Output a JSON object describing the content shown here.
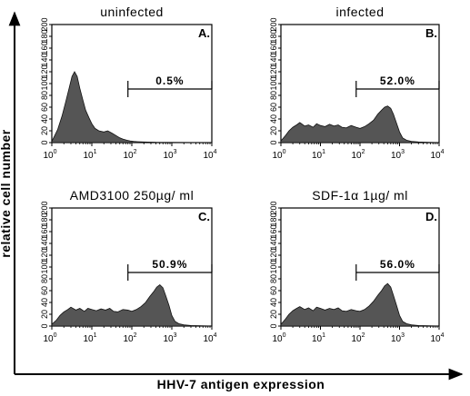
{
  "figure": {
    "ylabel": "relative   cell   number",
    "xlabel": "HHV-7   antigen   expression"
  },
  "chart_data": [
    {
      "type": "area",
      "panel": "A.",
      "title": "uninfected",
      "x_scale": "log",
      "xlim": [
        1,
        10000
      ],
      "x_ticks": [
        "10^0",
        "10^1",
        "10^2",
        "10^3",
        "10^4"
      ],
      "ylim": [
        0,
        200
      ],
      "y_ticks": [
        0,
        20,
        40,
        60,
        80,
        100,
        120,
        140,
        160,
        180,
        200
      ],
      "gate": {
        "x_start": 80,
        "x_end": 10000,
        "label": "0.5%"
      },
      "color": "#555555",
      "series": {
        "x": [
          1,
          1.4,
          1.8,
          2.2,
          2.7,
          3.2,
          3.7,
          4.3,
          5,
          6,
          7,
          8.5,
          10,
          12,
          15,
          20,
          25,
          32,
          40,
          50,
          60,
          75,
          90,
          110,
          140,
          200,
          400,
          1000,
          10000
        ],
        "y": [
          2,
          22,
          45,
          68,
          92,
          112,
          120,
          112,
          92,
          72,
          55,
          42,
          32,
          24,
          20,
          18,
          20,
          16,
          12,
          8,
          6,
          4,
          3,
          2,
          1.5,
          1,
          0.5,
          0.3,
          0
        ]
      }
    },
    {
      "type": "area",
      "panel": "B.",
      "title": "infected",
      "x_scale": "log",
      "xlim": [
        1,
        10000
      ],
      "x_ticks": [
        "10^0",
        "10^1",
        "10^2",
        "10^3",
        "10^4"
      ],
      "ylim": [
        0,
        200
      ],
      "y_ticks": [
        0,
        20,
        40,
        60,
        80,
        100,
        120,
        140,
        160,
        180,
        200
      ],
      "gate": {
        "x_start": 80,
        "x_end": 10000,
        "label": "52.0%"
      },
      "color": "#555555",
      "series": {
        "x": [
          1,
          1.3,
          1.6,
          2,
          2.5,
          3,
          4,
          5,
          6.5,
          8,
          10,
          13,
          17,
          22,
          28,
          35,
          45,
          60,
          80,
          100,
          130,
          170,
          220,
          280,
          350,
          420,
          500,
          600,
          700,
          850,
          1000,
          1200,
          1500,
          2000,
          3000,
          5000,
          10000
        ],
        "y": [
          3,
          12,
          20,
          26,
          30,
          34,
          28,
          30,
          26,
          32,
          29,
          27,
          31,
          28,
          30,
          26,
          25,
          29,
          26,
          24,
          27,
          32,
          38,
          48,
          55,
          60,
          62,
          58,
          48,
          32,
          18,
          8,
          4,
          2,
          1,
          0.5,
          0
        ]
      }
    },
    {
      "type": "area",
      "panel": "C.",
      "title": "AMD3100   250µg/ ml",
      "x_scale": "log",
      "xlim": [
        1,
        10000
      ],
      "x_ticks": [
        "10^0",
        "10^1",
        "10^2",
        "10^3",
        "10^4"
      ],
      "ylim": [
        0,
        200
      ],
      "y_ticks": [
        0,
        20,
        40,
        60,
        80,
        100,
        120,
        140,
        160,
        180,
        200
      ],
      "gate": {
        "x_start": 80,
        "x_end": 10000,
        "label": "50.9%"
      },
      "color": "#555555",
      "series": {
        "x": [
          1,
          1.3,
          1.6,
          2,
          2.5,
          3,
          4,
          5,
          6.5,
          8,
          10,
          13,
          17,
          22,
          28,
          35,
          45,
          60,
          80,
          100,
          130,
          170,
          220,
          280,
          350,
          420,
          500,
          600,
          700,
          850,
          1000,
          1200,
          1500,
          2000,
          3000,
          5000,
          10000
        ],
        "y": [
          3,
          10,
          18,
          24,
          28,
          32,
          27,
          30,
          25,
          30,
          28,
          26,
          29,
          27,
          30,
          25,
          24,
          28,
          27,
          25,
          28,
          33,
          40,
          50,
          58,
          66,
          70,
          65,
          52,
          35,
          18,
          8,
          4,
          2,
          1,
          0.5,
          0
        ]
      }
    },
    {
      "type": "area",
      "panel": "D.",
      "title": "SDF-1α   1µg/ ml",
      "x_scale": "log",
      "xlim": [
        1,
        10000
      ],
      "x_ticks": [
        "10^0",
        "10^1",
        "10^2",
        "10^3",
        "10^4"
      ],
      "ylim": [
        0,
        200
      ],
      "y_ticks": [
        0,
        20,
        40,
        60,
        80,
        100,
        120,
        140,
        160,
        180,
        200
      ],
      "gate": {
        "x_start": 80,
        "x_end": 10000,
        "label": "56.0%"
      },
      "color": "#555555",
      "series": {
        "x": [
          1,
          1.3,
          1.6,
          2,
          2.5,
          3,
          4,
          5,
          6.5,
          8,
          10,
          13,
          17,
          22,
          28,
          35,
          45,
          60,
          80,
          100,
          130,
          170,
          220,
          280,
          350,
          420,
          500,
          600,
          700,
          850,
          1000,
          1200,
          1500,
          2000,
          3000,
          5000,
          10000
        ],
        "y": [
          3,
          12,
          20,
          26,
          30,
          33,
          28,
          31,
          26,
          32,
          30,
          27,
          30,
          28,
          31,
          26,
          25,
          28,
          26,
          25,
          28,
          34,
          42,
          52,
          60,
          68,
          72,
          66,
          52,
          34,
          18,
          8,
          4,
          2,
          1,
          0.5,
          0
        ]
      }
    }
  ]
}
